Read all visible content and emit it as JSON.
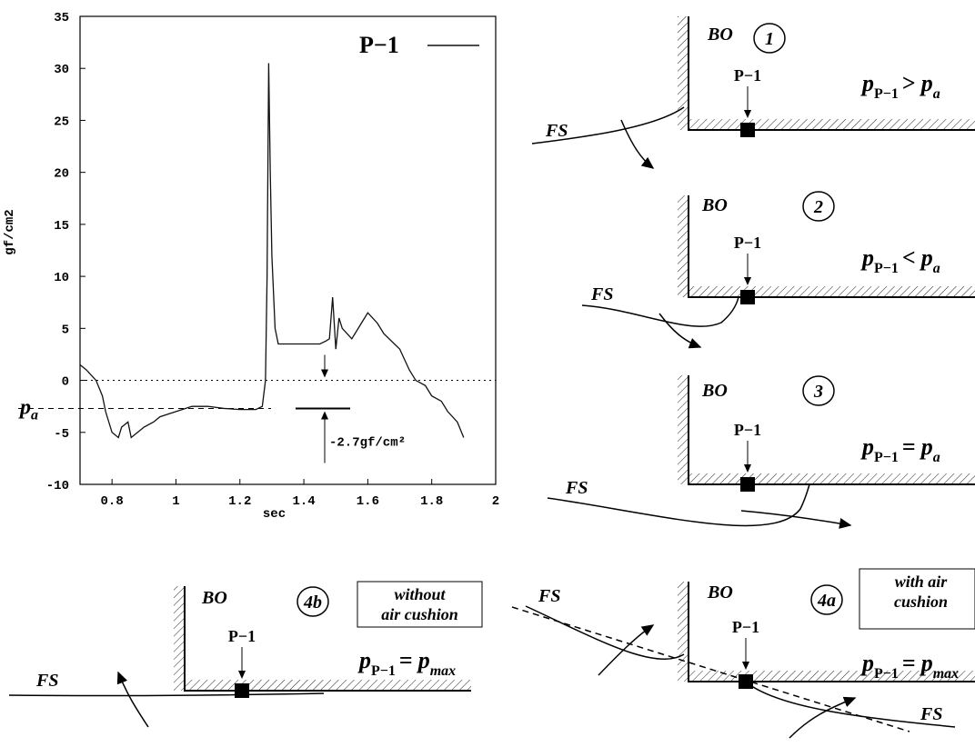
{
  "chart_data": {
    "type": "line",
    "xlabel": "sec",
    "ylabel": "gf/cm2",
    "x": [
      0.7,
      0.72,
      0.75,
      0.77,
      0.78,
      0.8,
      0.82,
      0.83,
      0.85,
      0.86,
      0.88,
      0.9,
      0.93,
      0.95,
      1.0,
      1.05,
      1.1,
      1.15,
      1.2,
      1.25,
      1.27,
      1.28,
      1.285,
      1.29,
      1.295,
      1.3,
      1.31,
      1.32,
      1.35,
      1.4,
      1.45,
      1.47,
      1.48,
      1.49,
      1.5,
      1.51,
      1.52,
      1.55,
      1.58,
      1.6,
      1.63,
      1.65,
      1.7,
      1.73,
      1.75,
      1.78,
      1.8,
      1.83,
      1.85,
      1.88,
      1.9
    ],
    "series": [
      {
        "name": "P−1",
        "color": "#111111",
        "values": [
          1.5,
          1,
          0,
          -1.5,
          -3,
          -5,
          -5.5,
          -4.5,
          -4,
          -5.5,
          -5,
          -4.5,
          -4,
          -3.5,
          -3,
          -2.5,
          -2.5,
          -2.7,
          -2.8,
          -2.8,
          -2.5,
          0,
          10,
          30.5,
          20,
          12,
          5,
          3.5,
          3.5,
          3.5,
          3.5,
          3.8,
          4,
          8,
          3,
          6,
          5,
          4,
          5.5,
          6.5,
          5.5,
          4.5,
          3,
          1,
          0,
          -0.5,
          -1.5,
          -2,
          -3,
          -4,
          -5.5
        ]
      }
    ],
    "xlim": [
      0.7,
      2
    ],
    "xticks": [
      0.8,
      1,
      1.2,
      1.4,
      1.6,
      1.8,
      2
    ],
    "ylim": [
      -10,
      35
    ],
    "yticks": [
      -10,
      -5,
      0,
      5,
      10,
      15,
      20,
      25,
      30,
      35
    ],
    "legend": "upper right",
    "level_label": [
      "p",
      "a"
    ],
    "annotation": {
      "text": "-2.7gf/cm²",
      "value": -2.7
    }
  },
  "diagrams": {
    "panels": [
      {
        "number": "1",
        "wall": "BO",
        "sensor": "P−1",
        "flow": [
          "FS"
        ],
        "formula": {
          "lhs": [
            "p",
            "P−1"
          ],
          "op": ">",
          "rhs": [
            "p",
            "a"
          ]
        },
        "note": []
      },
      {
        "number": "2",
        "wall": "BO",
        "sensor": "P−1",
        "flow": [
          "FS"
        ],
        "formula": {
          "lhs": [
            "p",
            "P−1"
          ],
          "op": "<",
          "rhs": [
            "p",
            "a"
          ]
        },
        "note": []
      },
      {
        "number": "3",
        "wall": "BO",
        "sensor": "P−1",
        "flow": [
          "FS"
        ],
        "formula": {
          "lhs": [
            "p",
            "P−1"
          ],
          "op": "=",
          "rhs": [
            "p",
            "a"
          ]
        },
        "note": []
      },
      {
        "number": "4b",
        "wall": "BO",
        "sensor": "P−1",
        "flow": [
          "FS"
        ],
        "formula": {
          "lhs": [
            "p",
            "P−1"
          ],
          "op": "=",
          "rhs": [
            "p",
            "max"
          ]
        },
        "note": [
          "without",
          "air cushion"
        ]
      },
      {
        "number": "4a",
        "wall": "BO",
        "sensor": "P−1",
        "flow": [
          "FS",
          "FS"
        ],
        "formula": {
          "lhs": [
            "p",
            "P−1"
          ],
          "op": "=",
          "rhs": [
            "p",
            "max"
          ]
        },
        "note": [
          "with air",
          "cushion"
        ]
      }
    ]
  }
}
